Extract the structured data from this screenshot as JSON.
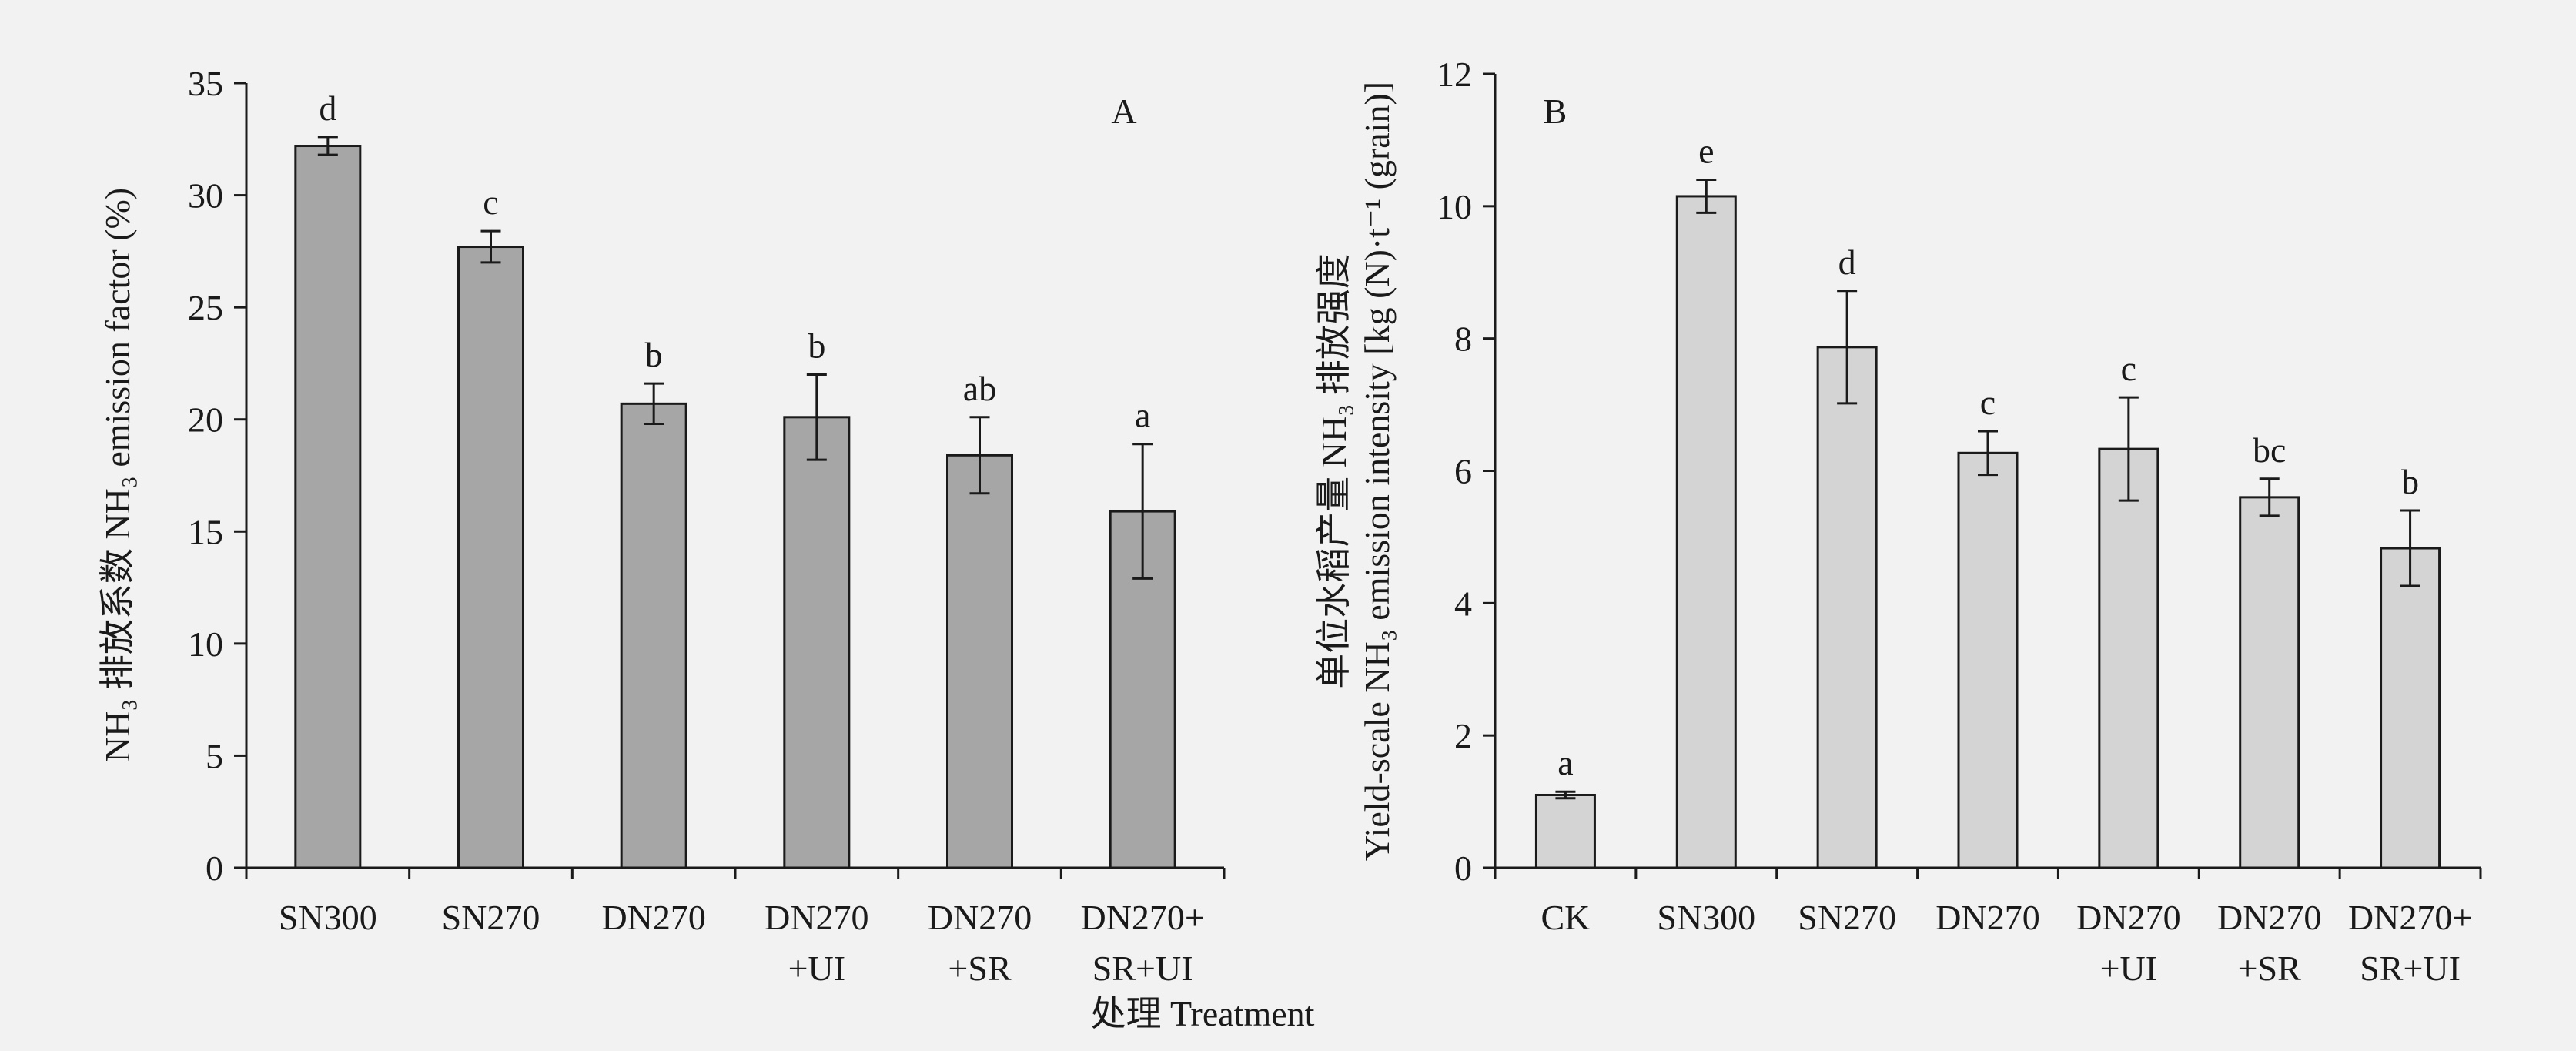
{
  "x_axis_title": "处理 Treatment",
  "chart_data": [
    {
      "type": "bar",
      "panel_label": "A",
      "ylabel": "NH₃ 排放系数 NH₃ emission factor (%)",
      "ylim": [
        0,
        35
      ],
      "yticks": [
        0,
        5,
        10,
        15,
        20,
        25,
        30,
        35
      ],
      "bar_color": "#a6a6a6",
      "categories": [
        [
          "SN300"
        ],
        [
          "SN270"
        ],
        [
          "DN270"
        ],
        [
          "DN270",
          "+UI"
        ],
        [
          "DN270",
          "+SR"
        ],
        [
          "DN270+",
          "SR+UI"
        ]
      ],
      "values": [
        32.2,
        27.7,
        20.7,
        20.1,
        18.4,
        15.9
      ],
      "errors": [
        0.4,
        0.7,
        0.9,
        1.9,
        1.7,
        3.0
      ],
      "significance": [
        "d",
        "c",
        "b",
        "b",
        "ab",
        "a"
      ]
    },
    {
      "type": "bar",
      "panel_label": "B",
      "ylabel_line1": "单位水稻产量 NH₃ 排放强度",
      "ylabel_line2": "Yield-scale NH₃ emission intensity [kg (N)·t⁻¹ (grain)]",
      "ylim": [
        0,
        12
      ],
      "yticks": [
        0,
        2,
        4,
        6,
        8,
        10,
        12
      ],
      "bar_color": "#d4d4d4",
      "categories": [
        [
          "CK"
        ],
        [
          "SN300"
        ],
        [
          "SN270"
        ],
        [
          "DN270"
        ],
        [
          "DN270",
          "+UI"
        ],
        [
          "DN270",
          "+SR"
        ],
        [
          "DN270+",
          "SR+UI"
        ]
      ],
      "values": [
        1.1,
        10.15,
        7.87,
        6.27,
        6.33,
        5.6,
        4.83
      ],
      "errors": [
        0.05,
        0.25,
        0.85,
        0.33,
        0.78,
        0.28,
        0.57
      ],
      "significance": [
        "a",
        "e",
        "d",
        "c",
        "c",
        "bc",
        "b"
      ]
    }
  ]
}
